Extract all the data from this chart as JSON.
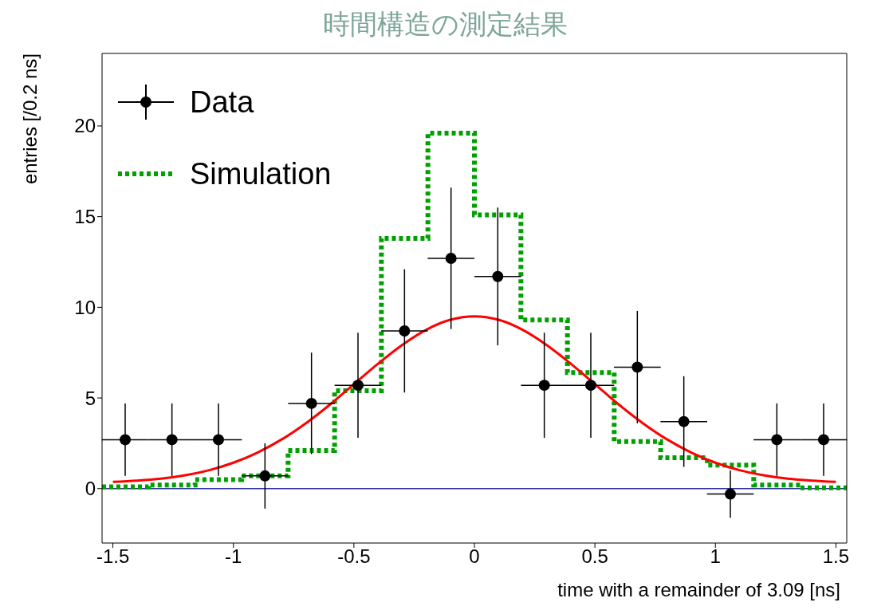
{
  "chart_data": {
    "type": "scatter",
    "title": "時間構造の測定結果",
    "xlabel": "time with a remainder of 3.09 [ns]",
    "ylabel": "entries [/0.2 ns]",
    "xlim": [
      -1.545,
      1.545
    ],
    "xticks": [
      -1.5,
      -1,
      -0.5,
      0,
      0.5,
      1,
      1.5
    ],
    "ylim": [
      -3,
      24
    ],
    "yticks": [
      0,
      5,
      10,
      15,
      20
    ],
    "grid": false,
    "legend": "top left",
    "ref_lines": [
      {
        "axis": "y",
        "value": 0,
        "color": "#3030a0"
      }
    ],
    "series": [
      {
        "name": "Data",
        "color": "#000000",
        "marker": "circle",
        "x": [
          -1.449,
          -1.255,
          -1.062,
          -0.869,
          -0.676,
          -0.483,
          -0.29,
          -0.097,
          0.097,
          0.29,
          0.483,
          0.676,
          0.869,
          1.062,
          1.255,
          1.449
        ],
        "values": [
          2.7,
          2.7,
          2.7,
          0.7,
          4.7,
          5.7,
          8.7,
          12.7,
          11.7,
          5.7,
          5.7,
          6.7,
          3.7,
          -0.3,
          2.7,
          2.7
        ],
        "errors": [
          2.0,
          2.0,
          2.0,
          1.8,
          2.8,
          2.9,
          3.4,
          3.9,
          3.8,
          2.9,
          2.9,
          3.1,
          2.5,
          1.3,
          2.0,
          2.0
        ],
        "xerrors": [
          0.097,
          0.097,
          0.097,
          0.097,
          0.097,
          0.097,
          0.097,
          0.097,
          0.097,
          0.097,
          0.097,
          0.097,
          0.097,
          0.097,
          0.097,
          0.097
        ]
      },
      {
        "name": "Simulation",
        "type": "histogram",
        "color": "#00a000",
        "line_style": "dotted",
        "bins": [
          -1.545,
          -1.352,
          -1.159,
          -0.966,
          -0.773,
          -0.58,
          -0.386,
          -0.193,
          0,
          0.193,
          0.386,
          0.58,
          0.773,
          0.966,
          1.159,
          1.352,
          1.545
        ],
        "values": [
          0.1,
          0.2,
          0.5,
          0.7,
          2.1,
          5.4,
          13.8,
          19.6,
          15.1,
          9.3,
          6.4,
          2.6,
          1.7,
          1.3,
          0.2,
          0.05
        ]
      },
      {
        "type": "line",
        "color": "#ff0000",
        "x": [
          -1.5,
          -1.4,
          -1.3,
          -1.2,
          -1.1,
          -1.0,
          -0.9,
          -0.8,
          -0.7,
          -0.6,
          -0.5,
          -0.4,
          -0.3,
          -0.2,
          -0.1,
          0,
          0.1,
          0.2,
          0.3,
          0.4,
          0.5,
          0.6,
          0.7,
          0.8,
          0.9,
          1.0,
          1.1,
          1.2,
          1.3,
          1.4,
          1.5
        ],
        "values": [
          0.37,
          0.44,
          0.55,
          0.74,
          1.02,
          1.43,
          1.99,
          2.71,
          3.6,
          4.63,
          5.76,
          6.89,
          7.92,
          8.76,
          9.31,
          9.5,
          9.31,
          8.76,
          7.92,
          6.89,
          5.76,
          4.63,
          3.6,
          2.71,
          1.99,
          1.43,
          1.02,
          0.74,
          0.55,
          0.44,
          0.37
        ]
      }
    ]
  }
}
